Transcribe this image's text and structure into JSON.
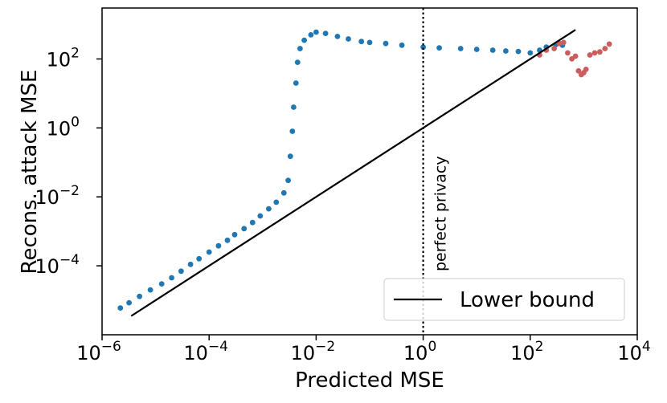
{
  "chart_data": {
    "type": "scatter",
    "xscale": "log",
    "yscale": "log",
    "xlabel": "Predicted MSE",
    "ylabel": "Recons. attack MSE",
    "xlim": [
      1e-06,
      10000.0
    ],
    "ylim": [
      1e-06,
      3000
    ],
    "x_ticks": [
      {
        "value": 1e-06,
        "base": "10",
        "exp": "−6"
      },
      {
        "value": 0.0001,
        "base": "10",
        "exp": "−4"
      },
      {
        "value": 0.01,
        "base": "10",
        "exp": "−2"
      },
      {
        "value": 1,
        "base": "10",
        "exp": "0"
      },
      {
        "value": 100,
        "base": "10",
        "exp": "2"
      },
      {
        "value": 10000,
        "base": "10",
        "exp": "4"
      }
    ],
    "y_ticks": [
      {
        "value": 0.0001,
        "base": "10",
        "exp": "−4"
      },
      {
        "value": 0.01,
        "base": "10",
        "exp": "−2"
      },
      {
        "value": 1,
        "base": "10",
        "exp": "0"
      },
      {
        "value": 100,
        "base": "10",
        "exp": "2"
      }
    ],
    "colors": {
      "blue": "#1f77b4",
      "red": "#cd5c5c",
      "line": "#000000"
    },
    "series": [
      {
        "color": "blue",
        "points": [
          [
            2.2e-06,
            6e-06
          ],
          [
            3.2e-06,
            8.5e-06
          ],
          [
            5e-06,
            1.3e-05
          ],
          [
            8e-06,
            2e-05
          ],
          [
            1.3e-05,
            3e-05
          ],
          [
            2e-05,
            4.5e-05
          ],
          [
            3e-05,
            7e-05
          ],
          [
            4.5e-05,
            0.00011
          ],
          [
            6.5e-05,
            0.00016
          ],
          [
            0.0001,
            0.00025
          ],
          [
            0.00015,
            0.00038
          ],
          [
            0.00022,
            0.00055
          ],
          [
            0.0003,
            0.0008
          ],
          [
            0.00045,
            0.0012
          ],
          [
            0.00065,
            0.0018
          ],
          [
            0.0009,
            0.0028
          ],
          [
            0.0013,
            0.0045
          ],
          [
            0.0018,
            0.007
          ],
          [
            0.0025,
            0.013
          ],
          [
            0.003,
            0.03
          ],
          [
            0.0033,
            0.15
          ],
          [
            0.0036,
            0.8
          ],
          [
            0.0038,
            4
          ],
          [
            0.0042,
            20
          ],
          [
            0.0045,
            80
          ],
          [
            0.005,
            200
          ],
          [
            0.006,
            350
          ],
          [
            0.008,
            500
          ],
          [
            0.01,
            600
          ],
          [
            0.015,
            550
          ],
          [
            0.025,
            450
          ],
          [
            0.04,
            380
          ],
          [
            0.07,
            320
          ],
          [
            0.1,
            300
          ],
          [
            0.2,
            280
          ],
          [
            0.4,
            250
          ],
          [
            1,
            220
          ],
          [
            2,
            210
          ],
          [
            5,
            200
          ],
          [
            10,
            190
          ],
          [
            20,
            180
          ],
          [
            35,
            170
          ],
          [
            60,
            165
          ],
          [
            100,
            150
          ],
          [
            150,
            180
          ],
          [
            200,
            220
          ],
          [
            300,
            260
          ],
          [
            400,
            250
          ]
        ]
      },
      {
        "color": "red",
        "points": [
          [
            150,
            130
          ],
          [
            200,
            180
          ],
          [
            280,
            200
          ],
          [
            350,
            280
          ],
          [
            420,
            300
          ],
          [
            500,
            150
          ],
          [
            600,
            100
          ],
          [
            700,
            120
          ],
          [
            800,
            45
          ],
          [
            900,
            35
          ],
          [
            1000,
            40
          ],
          [
            1100,
            50
          ],
          [
            1300,
            130
          ],
          [
            1600,
            150
          ],
          [
            2000,
            160
          ],
          [
            2500,
            200
          ],
          [
            3000,
            270
          ]
        ]
      }
    ],
    "lower_bound_line": {
      "x": [
        3.5e-06,
        700
      ],
      "y": [
        3.5e-06,
        700
      ]
    },
    "vline": {
      "x": 1,
      "style": "dotted",
      "label": "perfect privacy"
    },
    "legend": {
      "position": "lower-right",
      "entries": [
        {
          "label": "Lower bound",
          "color": "line"
        }
      ]
    }
  }
}
